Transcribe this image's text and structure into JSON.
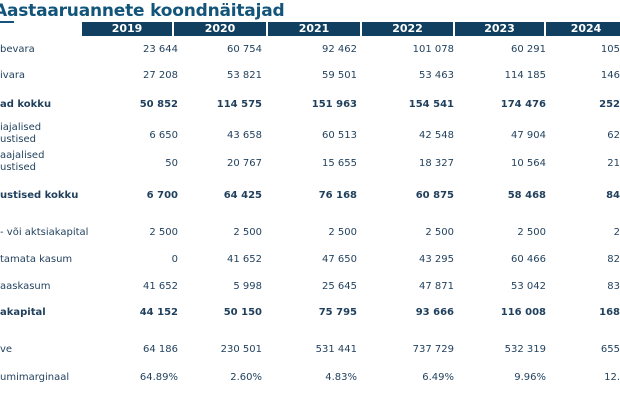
{
  "title": "Aastaaruannete koondnäitajad",
  "columns": [
    "2019",
    "2020",
    "2021",
    "2022",
    "2023",
    "2024"
  ],
  "rows": [
    {
      "label": "bevara",
      "bold": false,
      "values": [
        "23 644",
        "60 754",
        "92 462",
        "101 078",
        "60 291",
        "105"
      ]
    },
    {
      "label": "ivara",
      "bold": false,
      "values": [
        "27 208",
        "53 821",
        "59 501",
        "53 463",
        "114 185",
        "146"
      ]
    },
    {
      "label": "ad kokku",
      "bold": true,
      "values": [
        "50 852",
        "114 575",
        "151 963",
        "154 541",
        "174 476",
        "252"
      ]
    },
    {
      "label": "iajalised\nustised",
      "bold": false,
      "values": [
        "6 650",
        "43 658",
        "60 513",
        "42 548",
        "47 904",
        "62"
      ]
    },
    {
      "label": "aajalised\nustised",
      "bold": false,
      "values": [
        "50",
        "20 767",
        "15 655",
        "18 327",
        "10 564",
        "21"
      ]
    },
    {
      "label": "ustised kokku",
      "bold": true,
      "values": [
        "6 700",
        "64 425",
        "76 168",
        "60 875",
        "58 468",
        "84"
      ]
    },
    {
      "label": "- või aktsiakapital",
      "bold": false,
      "values": [
        "2 500",
        "2 500",
        "2 500",
        "2 500",
        "2 500",
        "2"
      ]
    },
    {
      "label": "tamata kasum",
      "bold": false,
      "values": [
        "0",
        "41 652",
        "47 650",
        "43 295",
        "60 466",
        "82"
      ]
    },
    {
      "label": "aaskasum",
      "bold": false,
      "values": [
        "41 652",
        "5 998",
        "25 645",
        "47 871",
        "53 042",
        "83"
      ]
    },
    {
      "label": "akapital",
      "bold": true,
      "values": [
        "44 152",
        "50 150",
        "75 795",
        "93 666",
        "116 008",
        "168"
      ]
    },
    {
      "label": "ve",
      "bold": false,
      "values": [
        "64 186",
        "230 501",
        "531 441",
        "737 729",
        "532 319",
        "655"
      ]
    },
    {
      "label": "umimarginaal",
      "bold": false,
      "values": [
        "64.89%",
        "2.60%",
        "4.83%",
        "6.49%",
        "9.96%",
        "12."
      ]
    }
  ]
}
